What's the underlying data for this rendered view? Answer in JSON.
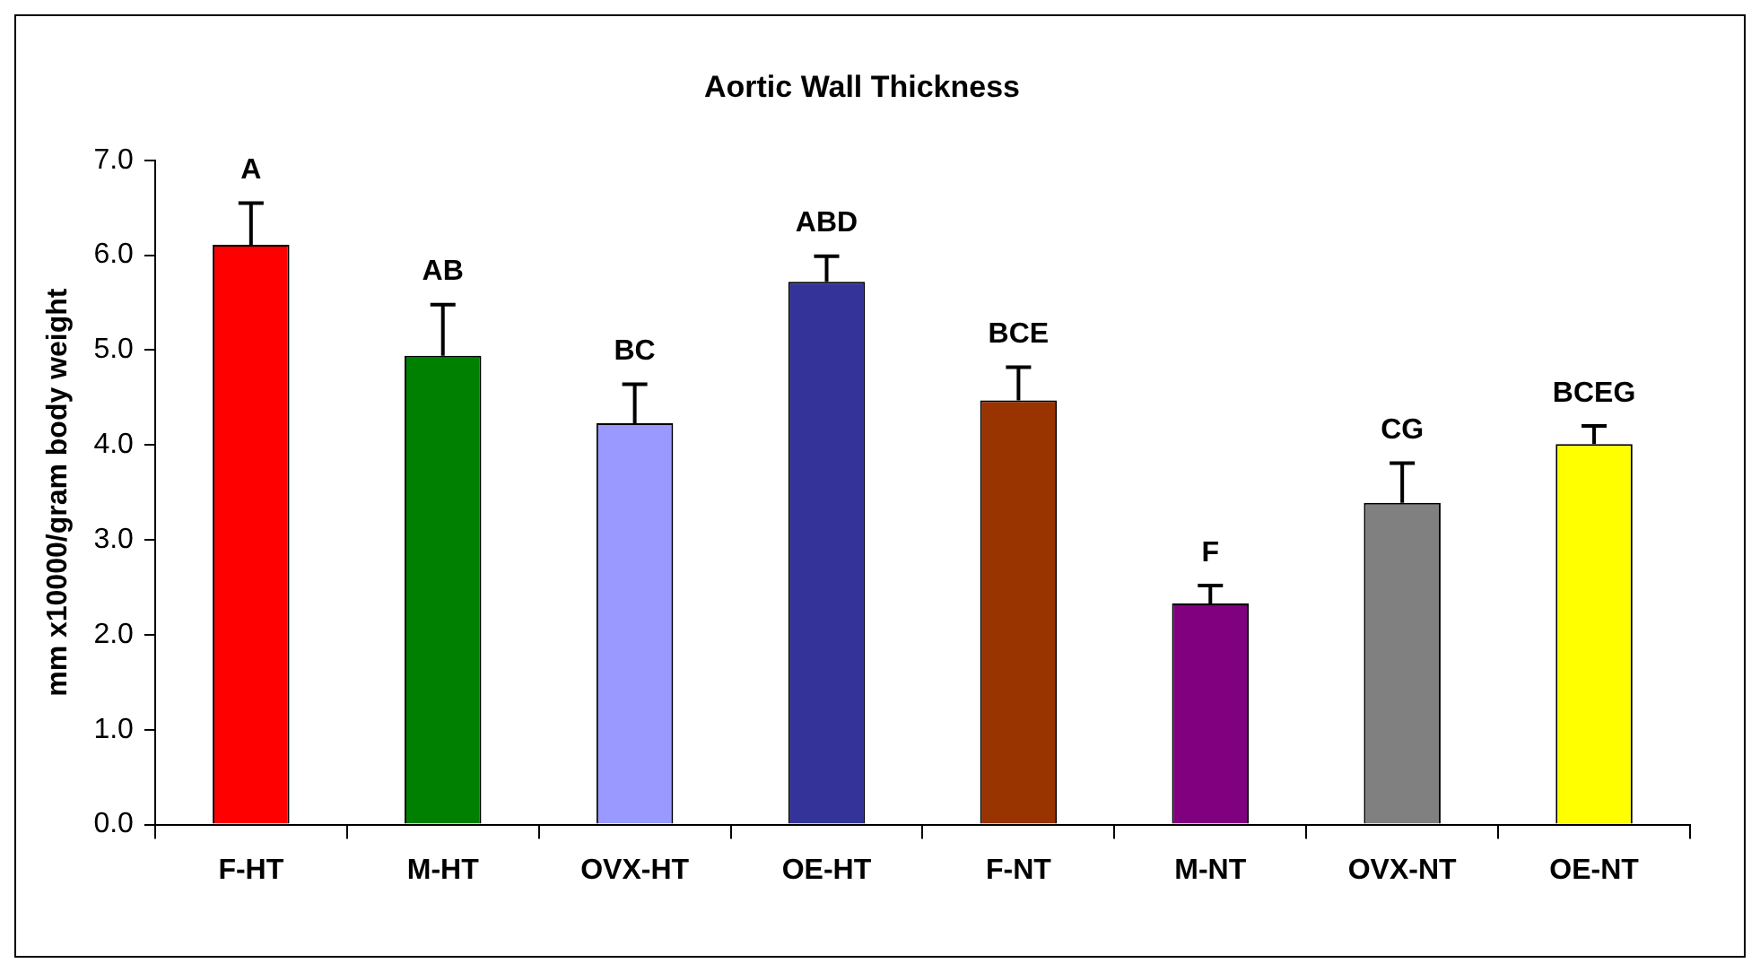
{
  "chart_data": {
    "type": "bar",
    "title": "Aortic Wall Thickness",
    "ylabel": "mm x10000/gram body weight",
    "categories": [
      "F-HT",
      "M-HT",
      "OVX-HT",
      "OE-HT",
      "F-NT",
      "M-NT",
      "OVX-NT",
      "OE-NT"
    ],
    "values": [
      6.11,
      4.94,
      4.23,
      5.72,
      4.47,
      2.33,
      3.39,
      4.01
    ],
    "errors": [
      0.44,
      0.54,
      0.41,
      0.27,
      0.35,
      0.19,
      0.42,
      0.19
    ],
    "colors": [
      "#ff0000",
      "#008000",
      "#9999ff",
      "#333399",
      "#993300",
      "#800080",
      "#808080",
      "#ffff00"
    ],
    "ylim": [
      0,
      7
    ],
    "yticks": [
      {
        "value": 0,
        "label": "0.0"
      },
      {
        "value": 1,
        "label": "1.0"
      },
      {
        "value": 2,
        "label": "2.0"
      },
      {
        "value": 3,
        "label": "3.0"
      },
      {
        "value": 4,
        "label": "4.0"
      },
      {
        "value": 5,
        "label": "5.0"
      },
      {
        "value": 6,
        "label": "6.0"
      },
      {
        "value": 7,
        "label": "7.0"
      }
    ],
    "grid": false,
    "legend": false,
    "annotations": [
      {
        "text": "A",
        "x": "F-HT",
        "y": 6.55
      },
      {
        "text": "AB",
        "x": "M-HT",
        "y": 5.48
      },
      {
        "text": "BC",
        "x": "OVX-HT",
        "y": 4.64
      },
      {
        "text": "ABD",
        "x": "OE-HT",
        "y": 5.99
      },
      {
        "text": "BCE",
        "x": "F-NT",
        "y": 4.82
      },
      {
        "text": "F",
        "x": "M-NT",
        "y": 2.52
      },
      {
        "text": "CG",
        "x": "OVX-NT",
        "y": 3.81
      },
      {
        "text": "BCEG",
        "x": "OE-NT",
        "y": 4.2
      }
    ]
  }
}
